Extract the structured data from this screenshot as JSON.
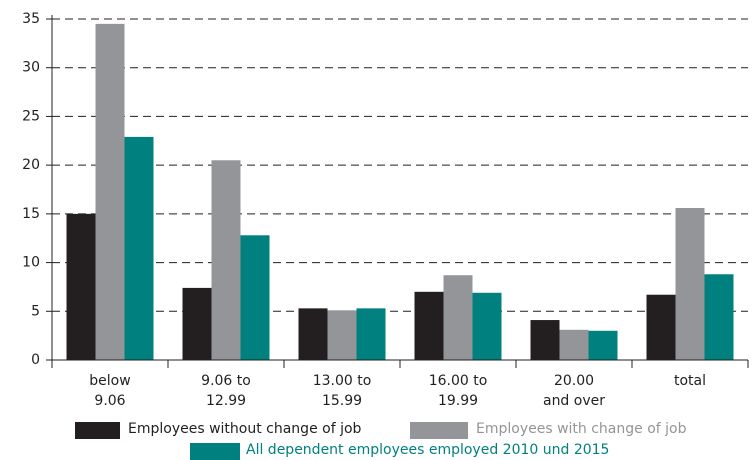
{
  "chart_data": {
    "type": "bar",
    "categories": [
      "below\n9.06",
      "9.06 to\n12.99",
      "13.00 to\n15.99",
      "16.00 to\n19.99",
      "20.00\nand over",
      "total"
    ],
    "series": [
      {
        "name": "Employees without change of job",
        "color": "#231f20",
        "values": [
          15.0,
          7.4,
          5.3,
          7.0,
          4.1,
          6.7
        ]
      },
      {
        "name": "Employees with change of job",
        "color": "#939598",
        "values": [
          34.5,
          20.5,
          5.1,
          8.7,
          3.1,
          15.6
        ]
      },
      {
        "name": "All dependent employees employed 2010 und 2015",
        "color": "#00807f",
        "values": [
          22.9,
          12.8,
          5.3,
          6.9,
          3.0,
          8.8
        ]
      }
    ],
    "ylim": [
      0,
      35
    ],
    "yticks": [
      0,
      5,
      10,
      15,
      20,
      25,
      30,
      35
    ],
    "grid": true
  }
}
